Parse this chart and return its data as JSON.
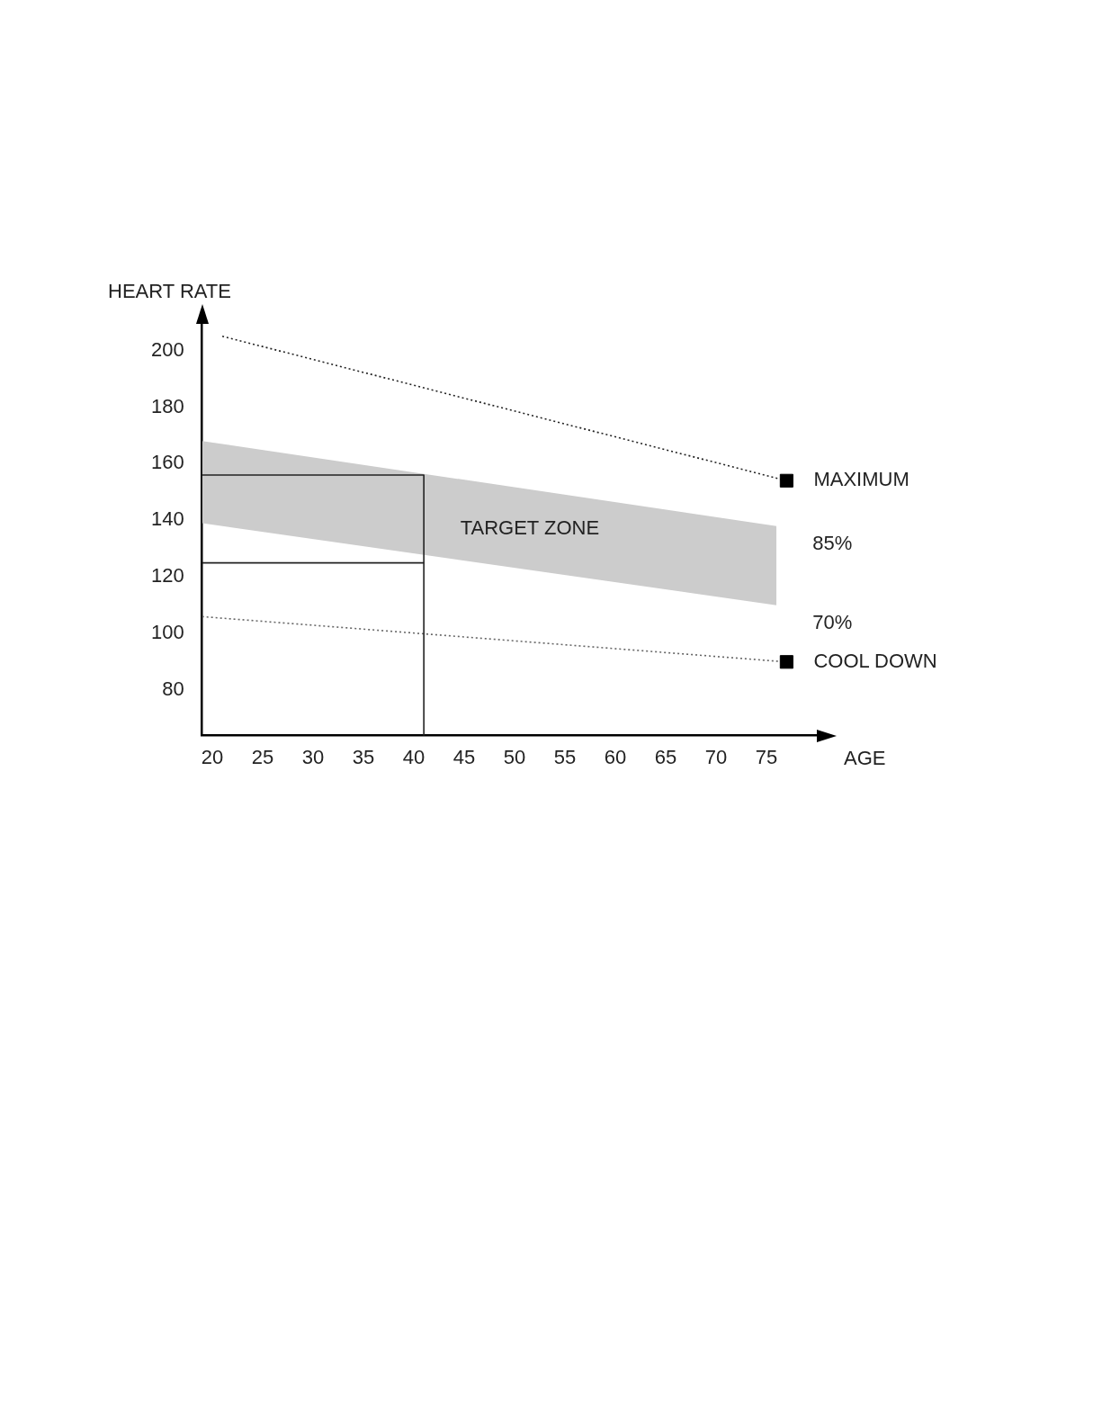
{
  "chart_data": {
    "type": "line",
    "xlabel": "AGE",
    "ylabel": "HEART RATE",
    "xlim": [
      19,
      80
    ],
    "ylim": [
      64,
      210
    ],
    "xticks": [
      20,
      25,
      30,
      35,
      40,
      45,
      50,
      55,
      60,
      65,
      70,
      75
    ],
    "yticks": [
      80,
      100,
      120,
      140,
      160,
      180,
      200
    ],
    "grid": false,
    "legend": false,
    "annotations": [
      "TARGET ZONE",
      {
        "text": "85%",
        "x": 76,
        "y": 138
      },
      {
        "text": "70%",
        "x": 76,
        "y": 110
      }
    ],
    "series": [
      {
        "color": "#cccccc",
        "x": [
          19,
          76
        ],
        "values": [
          null,
          null
        ],
        "lower": [
          139,
          110
        ],
        "upper": [
          168,
          138
        ]
      },
      {
        "color": "#222222",
        "line_style": "dotted",
        "x": [
          21,
          77
        ],
        "values": [
          205,
          154
        ]
      },
      {
        "type": "scatter",
        "name": "MAXIMUM",
        "color": "#000000",
        "marker": "square",
        "x": [
          77
        ],
        "values": [
          154
        ]
      },
      {
        "color": "#666666",
        "line_style": "dotted",
        "x": [
          19,
          77
        ],
        "values": [
          106,
          90
        ]
      },
      {
        "type": "scatter",
        "name": "COOL DOWN",
        "color": "#000000",
        "marker": "square",
        "x": [
          77
        ],
        "values": [
          90
        ]
      },
      {
        "color": "#222222",
        "line_style": "solid",
        "x": [
          19,
          41,
          41
        ],
        "values": [
          156,
          156,
          64
        ]
      },
      {
        "color": "#222222",
        "line_style": "solid",
        "x": [
          19,
          41
        ],
        "values": [
          125,
          125
        ]
      }
    ]
  }
}
